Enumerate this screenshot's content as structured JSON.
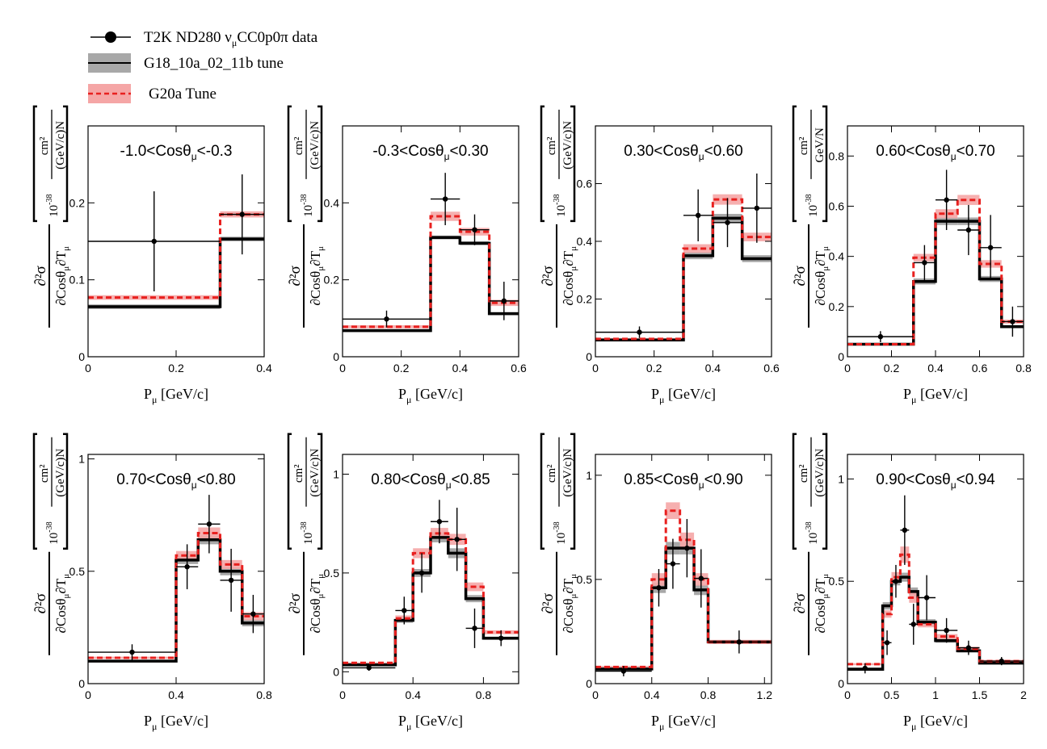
{
  "legend": [
    {
      "label": "T2K ND280 ν",
      "sub": "μ",
      "label_tail": "CC0p0π data",
      "style": "data"
    },
    {
      "label": "G18_10a_02_11b tune",
      "style": "g18"
    },
    {
      "label": "G20a Tune",
      "style": "g20"
    }
  ],
  "colors": {
    "data": "#000000",
    "g18_line": "#000000",
    "g18_band": "#a8a8a8",
    "g20_line": "#e8201f",
    "g20_band": "#f5a6a6"
  },
  "ylabel": {
    "num": "∂²σ",
    "den_a": "∂Cosθ",
    "den_b": "μ",
    "den_c": "∂T",
    "den_d": "μ",
    "unit_pow": "10",
    "unit_exp": "-38",
    "unit_num": "cm²",
    "unit_den_a": "(GeV/c)N",
    "unit_den_b": "GeV/N"
  },
  "xlabel": {
    "main": "P",
    "sub": "μ",
    "tail": " [GeV/c]"
  },
  "chart_data": [
    {
      "type": "step",
      "title": {
        "a": "-1.0<Cosθ",
        "b": "μ",
        "c": "<-0.3"
      },
      "xlim": [
        0,
        0.4
      ],
      "ylim": [
        0,
        0.3
      ],
      "xticks": [
        "0",
        "0.2",
        "0.4"
      ],
      "xtick_values": [
        0,
        0.2,
        0.4
      ],
      "yticks": [
        "0",
        "0.1",
        "0.2"
      ],
      "ytick_values": [
        0,
        0.1,
        0.2
      ],
      "unit_variant": "a",
      "bin_edges": [
        0,
        0.3,
        0.4
      ],
      "data": [
        0.15,
        0.185
      ],
      "data_x": [
        0.15,
        0.35
      ],
      "data_err": [
        0.065,
        0.052
      ],
      "g18": [
        0.065,
        0.153
      ],
      "g18_err": [
        0.003,
        0.003
      ],
      "g20": [
        0.077,
        0.185
      ],
      "g20_err": [
        0.003,
        0.004
      ]
    },
    {
      "type": "step",
      "title": {
        "a": "-0.3<Cosθ",
        "b": "μ",
        "c": "<0.30"
      },
      "xlim": [
        0,
        0.6
      ],
      "ylim": [
        0,
        0.6
      ],
      "xticks": [
        "0",
        "0.2",
        "0.4",
        "0.6"
      ],
      "xtick_values": [
        0,
        0.2,
        0.4,
        0.6
      ],
      "yticks": [
        "0",
        "0.2",
        "0.4"
      ],
      "ytick_values": [
        0,
        0.2,
        0.4
      ],
      "unit_variant": "a",
      "bin_edges": [
        0,
        0.3,
        0.4,
        0.5,
        0.6
      ],
      "data": [
        0.098,
        0.41,
        0.33,
        0.145
      ],
      "data_x": [
        0.15,
        0.35,
        0.45,
        0.55
      ],
      "data_err": [
        0.022,
        0.068,
        0.04,
        0.05
      ],
      "g18": [
        0.068,
        0.31,
        0.295,
        0.112
      ],
      "g18_err": [
        0.004,
        0.005,
        0.005,
        0.004
      ],
      "g20": [
        0.078,
        0.365,
        0.325,
        0.14
      ],
      "g20_err": [
        0.004,
        0.012,
        0.01,
        0.008
      ]
    },
    {
      "type": "step",
      "title": {
        "a": "0.30<Cosθ",
        "b": "μ",
        "c": "<0.60"
      },
      "xlim": [
        0,
        0.6
      ],
      "ylim": [
        0,
        0.8
      ],
      "xticks": [
        "0",
        "0.2",
        "0.4",
        "0.6"
      ],
      "xtick_values": [
        0,
        0.2,
        0.4,
        0.6
      ],
      "yticks": [
        "0",
        "0.2",
        "0.4",
        "0.6"
      ],
      "ytick_values": [
        0,
        0.2,
        0.4,
        0.6
      ],
      "unit_variant": "a",
      "bin_edges": [
        0,
        0.3,
        0.4,
        0.5,
        0.6
      ],
      "data": [
        0.085,
        0.49,
        0.465,
        0.515
      ],
      "data_x": [
        0.15,
        0.35,
        0.45,
        0.55
      ],
      "data_err": [
        0.02,
        0.09,
        0.085,
        0.12
      ],
      "g18": [
        0.058,
        0.35,
        0.48,
        0.34
      ],
      "g18_err": [
        0.003,
        0.012,
        0.015,
        0.012
      ],
      "g20": [
        0.062,
        0.375,
        0.545,
        0.415
      ],
      "g20_err": [
        0.003,
        0.015,
        0.018,
        0.015
      ]
    },
    {
      "type": "step",
      "title": {
        "a": "0.60<Cosθ",
        "b": "μ",
        "c": "<0.70"
      },
      "xlim": [
        0,
        0.8
      ],
      "ylim": [
        0,
        0.92
      ],
      "xticks": [
        "0",
        "0.2",
        "0.4",
        "0.6",
        "0.8"
      ],
      "xtick_values": [
        0,
        0.2,
        0.4,
        0.6,
        0.8
      ],
      "yticks": [
        "0",
        "0.2",
        "0.4",
        "0.6",
        "0.8"
      ],
      "ytick_values": [
        0,
        0.2,
        0.4,
        0.6,
        0.8
      ],
      "unit_variant": "b",
      "bin_edges": [
        0,
        0.3,
        0.4,
        0.5,
        0.6,
        0.7,
        0.8
      ],
      "data": [
        0.08,
        0.375,
        0.625,
        0.505,
        0.435,
        0.14
      ],
      "data_x": [
        0.15,
        0.35,
        0.45,
        0.55,
        0.65,
        0.75
      ],
      "data_err": [
        0.022,
        0.07,
        0.12,
        0.1,
        0.13,
        0.06
      ],
      "g18": [
        0.05,
        0.3,
        0.54,
        0.54,
        0.31,
        0.12
      ],
      "g18_err": [
        0.003,
        0.012,
        0.015,
        0.015,
        0.012,
        0.006
      ],
      "g20": [
        0.05,
        0.395,
        0.57,
        0.625,
        0.37,
        0.14
      ],
      "g20_err": [
        0.003,
        0.015,
        0.018,
        0.02,
        0.015,
        0.008
      ]
    },
    {
      "type": "step",
      "title": {
        "a": "0.70<Cosθ",
        "b": "μ",
        "c": "<0.80"
      },
      "xlim": [
        0,
        0.8
      ],
      "ylim": [
        0,
        1.02
      ],
      "xticks": [
        "0",
        "0.4",
        "0.8"
      ],
      "xtick_values": [
        0,
        0.4,
        0.8
      ],
      "yticks": [
        "0",
        "0.5",
        "1"
      ],
      "ytick_values": [
        0,
        0.5,
        1
      ],
      "unit_variant": "a",
      "bin_edges": [
        0,
        0.4,
        0.5,
        0.6,
        0.7,
        0.8
      ],
      "data": [
        0.14,
        0.52,
        0.71,
        0.46,
        0.31
      ],
      "data_x": [
        0.2,
        0.45,
        0.55,
        0.65,
        0.75
      ],
      "data_err": [
        0.035,
        0.1,
        0.13,
        0.14,
        0.085
      ],
      "g18": [
        0.1,
        0.55,
        0.64,
        0.5,
        0.27
      ],
      "g18_err": [
        0.004,
        0.018,
        0.02,
        0.018,
        0.015
      ],
      "g20": [
        0.115,
        0.57,
        0.67,
        0.53,
        0.3
      ],
      "g20_err": [
        0.005,
        0.02,
        0.025,
        0.02,
        0.018
      ]
    },
    {
      "type": "step",
      "title": {
        "a": "0.80<Cosθ",
        "b": "μ",
        "c": "<0.85"
      },
      "xlim": [
        0,
        1.0
      ],
      "ylim": [
        -0.06,
        1.1
      ],
      "xticks": [
        "0",
        "0.4",
        "0.8"
      ],
      "xtick_values": [
        0,
        0.4,
        0.8
      ],
      "yticks": [
        "0",
        "0.5",
        "1"
      ],
      "ytick_values": [
        0,
        0.5,
        1
      ],
      "unit_variant": "a",
      "bin_edges": [
        0,
        0.3,
        0.4,
        0.5,
        0.6,
        0.7,
        0.8,
        1.0
      ],
      "data": [
        0.02,
        0.31,
        0.5,
        0.76,
        0.67,
        0.22,
        0.17
      ],
      "data_x": [
        0.15,
        0.35,
        0.45,
        0.55,
        0.65,
        0.75,
        0.9
      ],
      "data_err": [
        0.015,
        0.07,
        0.1,
        0.11,
        0.16,
        0.1,
        0.04
      ],
      "g18": [
        0.035,
        0.26,
        0.5,
        0.68,
        0.6,
        0.37,
        0.17
      ],
      "g18_err": [
        0.003,
        0.012,
        0.02,
        0.025,
        0.025,
        0.018,
        0.008
      ],
      "g20": [
        0.045,
        0.27,
        0.6,
        0.7,
        0.67,
        0.43,
        0.2
      ],
      "g20_err": [
        0.003,
        0.015,
        0.025,
        0.028,
        0.028,
        0.022,
        0.01
      ]
    },
    {
      "type": "step",
      "title": {
        "a": "0.85<Cosθ",
        "b": "μ",
        "c": "<0.90"
      },
      "xlim": [
        0,
        1.25
      ],
      "ylim": [
        0,
        1.1
      ],
      "xticks": [
        "0",
        "0.4",
        "0.8",
        "1.2"
      ],
      "xtick_values": [
        0,
        0.4,
        0.8,
        1.2
      ],
      "yticks": [
        "0",
        "0.5",
        "1"
      ],
      "ytick_values": [
        0,
        0.5,
        1
      ],
      "unit_variant": "a",
      "bin_edges": [
        0,
        0.4,
        0.5,
        0.6,
        0.7,
        0.8,
        1.25
      ],
      "data": [
        0.06,
        0.46,
        0.575,
        0.65,
        0.505,
        0.2
      ],
      "data_x": [
        0.2,
        0.45,
        0.55,
        0.65,
        0.75,
        1.02
      ],
      "data_err": [
        0.025,
        0.09,
        0.12,
        0.14,
        0.14,
        0.055
      ],
      "g18": [
        0.07,
        0.46,
        0.65,
        0.65,
        0.45,
        0.2
      ],
      "g18_err": [
        0.004,
        0.025,
        0.03,
        0.03,
        0.025,
        0.008
      ],
      "g20": [
        0.08,
        0.5,
        0.83,
        0.69,
        0.5,
        0.2
      ],
      "g20_err": [
        0.005,
        0.03,
        0.04,
        0.035,
        0.03,
        0.01
      ]
    },
    {
      "type": "step",
      "title": {
        "a": "0.90<Cosθ",
        "b": "μ",
        "c": "<0.94"
      },
      "xlim": [
        0,
        2.0
      ],
      "ylim": [
        0,
        1.12
      ],
      "xticks": [
        "0",
        "0.5",
        "1",
        "1.5",
        "2"
      ],
      "xtick_values": [
        0,
        0.5,
        1,
        1.5,
        2
      ],
      "yticks": [
        "0",
        "0.5",
        "1"
      ],
      "ytick_values": [
        0,
        0.5,
        1
      ],
      "unit_variant": "a",
      "bin_edges": [
        0,
        0.4,
        0.5,
        0.6,
        0.7,
        0.8,
        1.0,
        1.25,
        1.5,
        2.0
      ],
      "data": [
        0.075,
        0.2,
        0.5,
        0.75,
        0.29,
        0.42,
        0.26,
        0.175,
        0.11
      ],
      "data_x": [
        0.2,
        0.45,
        0.55,
        0.65,
        0.75,
        0.9,
        1.125,
        1.375,
        1.75
      ],
      "data_err": [
        0.025,
        0.06,
        0.08,
        0.17,
        0.1,
        0.11,
        0.06,
        0.035,
        0.02
      ],
      "g18": [
        0.07,
        0.38,
        0.5,
        0.52,
        0.45,
        0.3,
        0.21,
        0.16,
        0.1
      ],
      "g18_err": [
        0.004,
        0.018,
        0.02,
        0.022,
        0.02,
        0.015,
        0.01,
        0.008,
        0.005
      ],
      "g20": [
        0.095,
        0.34,
        0.52,
        0.63,
        0.42,
        0.29,
        0.23,
        0.17,
        0.11
      ],
      "g20_err": [
        0.005,
        0.018,
        0.025,
        0.04,
        0.025,
        0.015,
        0.012,
        0.01,
        0.006
      ]
    }
  ]
}
